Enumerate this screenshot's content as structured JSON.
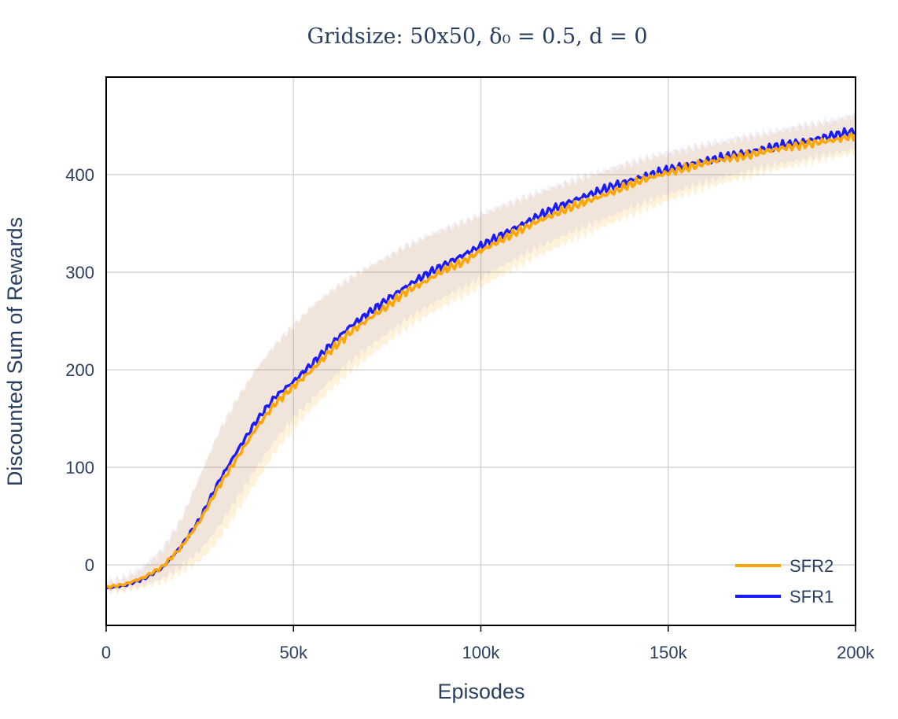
{
  "chart_data": {
    "type": "line",
    "title": "Gridsize: 50x50, δ₀ = 0.5, d = 0",
    "xlabel": "Episodes",
    "ylabel": "Discounted Sum of Rewards",
    "xlim": [
      0,
      200000
    ],
    "ylim": [
      -62,
      500
    ],
    "grid": true,
    "legend_position": "bottom-right",
    "x_ticks": [
      {
        "value": 0,
        "label": "0"
      },
      {
        "value": 50000,
        "label": "50k"
      },
      {
        "value": 100000,
        "label": "100k"
      },
      {
        "value": 150000,
        "label": "150k"
      },
      {
        "value": 200000,
        "label": "200k"
      }
    ],
    "y_ticks": [
      {
        "value": 0,
        "label": "0"
      },
      {
        "value": 100,
        "label": "100"
      },
      {
        "value": 200,
        "label": "200"
      },
      {
        "value": 300,
        "label": "300"
      },
      {
        "value": 400,
        "label": "400"
      }
    ],
    "x": [
      0,
      5000,
      10000,
      15000,
      20000,
      25000,
      30000,
      35000,
      40000,
      45000,
      50000,
      55000,
      60000,
      65000,
      70000,
      75000,
      80000,
      85000,
      90000,
      95000,
      100000,
      105000,
      110000,
      115000,
      120000,
      125000,
      130000,
      135000,
      140000,
      145000,
      150000,
      155000,
      160000,
      165000,
      170000,
      175000,
      180000,
      185000,
      190000,
      195000,
      200000
    ],
    "series": [
      {
        "name": "SFR2",
        "color": "#ffa500",
        "values": [
          -23,
          -20,
          -13,
          -2,
          18,
          45,
          80,
          110,
          140,
          165,
          183,
          200,
          220,
          238,
          252,
          265,
          280,
          290,
          302,
          310,
          322,
          332,
          342,
          352,
          360,
          368,
          375,
          382,
          390,
          397,
          402,
          407,
          412,
          416,
          419,
          423,
          427,
          430,
          433,
          436,
          440
        ],
        "upper": [
          -20,
          -15,
          -4,
          14,
          45,
          90,
          135,
          170,
          200,
          225,
          245,
          265,
          280,
          293,
          305,
          315,
          326,
          335,
          343,
          350,
          358,
          366,
          373,
          380,
          387,
          393,
          399,
          405,
          411,
          416,
          421,
          425,
          429,
          433,
          437,
          440,
          444,
          448,
          451,
          455,
          460
        ],
        "lower": [
          -27,
          -26,
          -23,
          -18,
          -8,
          4,
          25,
          55,
          85,
          115,
          140,
          160,
          180,
          198,
          213,
          228,
          242,
          254,
          265,
          275,
          285,
          296,
          306,
          316,
          325,
          334,
          342,
          350,
          358,
          366,
          373,
          380,
          386,
          392,
          397,
          402,
          406,
          410,
          414,
          418,
          422
        ]
      },
      {
        "name": "SFR1",
        "color": "#1a1aff",
        "values": [
          -24,
          -21,
          -14,
          -3,
          19,
          47,
          85,
          117,
          147,
          172,
          188,
          206,
          226,
          244,
          258,
          272,
          285,
          297,
          307,
          317,
          327,
          337,
          347,
          357,
          366,
          374,
          381,
          388,
          394,
          400,
          405,
          410,
          414,
          418,
          422,
          426,
          430,
          433,
          437,
          441,
          445
        ]
      }
    ]
  }
}
